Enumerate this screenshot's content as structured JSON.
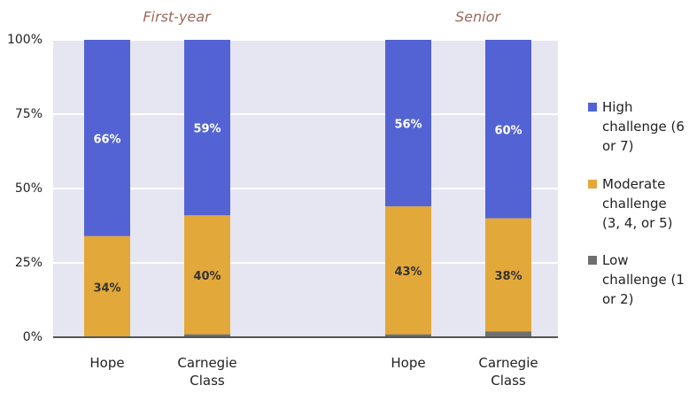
{
  "chart_data": {
    "type": "stacked_bar",
    "categories": [
      "Hope",
      "Carnegie Class",
      "Hope",
      "Carnegie Class"
    ],
    "groups": [
      {
        "name": "First-year",
        "size": 2
      },
      {
        "name": "Senior",
        "size": 2
      }
    ],
    "series": [
      {
        "name": "Low challenge (1 or 2)",
        "color": "#6f6f6f",
        "values": [
          0,
          1,
          1,
          2
        ]
      },
      {
        "name": "Moderate challenge (3, 4, or 5)",
        "color": "#e3a83a",
        "values": [
          34,
          40,
          43,
          38
        ],
        "value_labels": [
          "34%",
          "40%",
          "43%",
          "38%"
        ]
      },
      {
        "name": "High challenge (6 or 7)",
        "color": "#5363d3",
        "values": [
          66,
          59,
          56,
          60
        ],
        "value_labels": [
          "66%",
          "59%",
          "56%",
          "60%"
        ]
      }
    ],
    "ylim": [
      0,
      100
    ],
    "yticks": [
      {
        "value": 0,
        "label": "0%"
      },
      {
        "value": 25,
        "label": "25%"
      },
      {
        "value": 50,
        "label": "50%"
      },
      {
        "value": 75,
        "label": "75%"
      },
      {
        "value": 100,
        "label": "100%"
      }
    ],
    "grid": true,
    "legend": "right"
  }
}
